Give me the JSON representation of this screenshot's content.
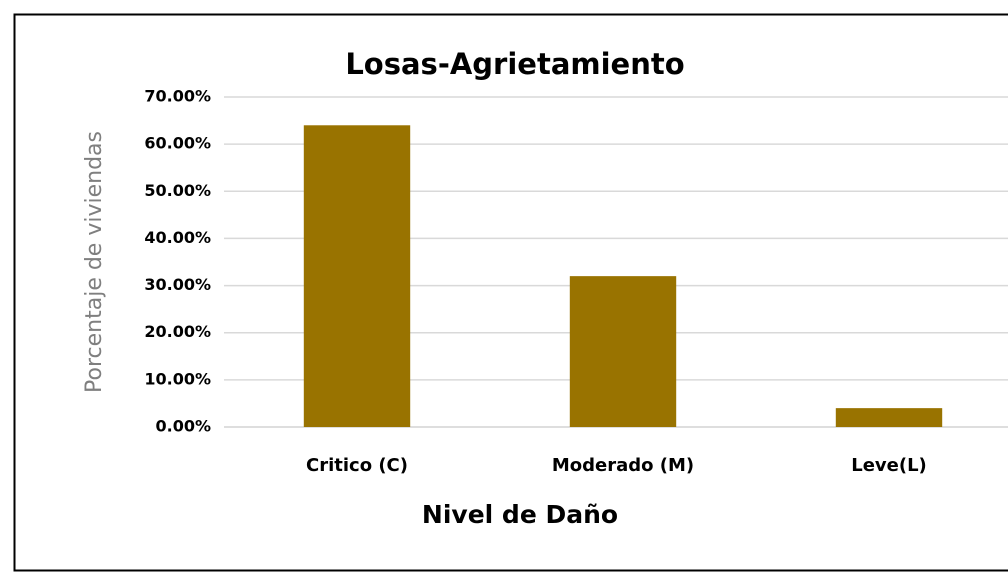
{
  "chart_data": {
    "type": "bar",
    "title": "Losas-Agrietamiento",
    "x_label": "Nivel de Daño",
    "y_label": "Porcentaje de viviendas",
    "categories": [
      "Critico (C)",
      "Moderado (M)",
      "Leve(L)"
    ],
    "values": [
      64,
      32,
      4
    ],
    "color": "#997300",
    "ylim": [
      0,
      70
    ],
    "yticks": [
      {
        "value": 0,
        "label": "0.00%"
      },
      {
        "value": 10,
        "label": "10.00%"
      },
      {
        "value": 20,
        "label": "20.00%"
      },
      {
        "value": 30,
        "label": "30.00%"
      },
      {
        "value": 40,
        "label": "40.00%"
      },
      {
        "value": 50,
        "label": "50.00%"
      },
      {
        "value": 60,
        "label": "60.00%"
      },
      {
        "value": 70,
        "label": "70.00%"
      }
    ],
    "grid": true
  }
}
